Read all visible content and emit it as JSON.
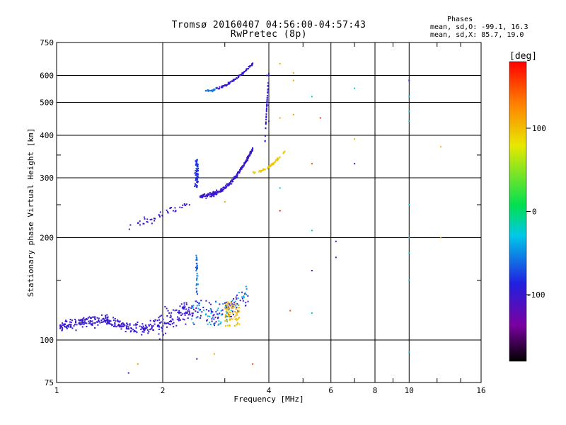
{
  "chart_data": {
    "type": "scatter",
    "title": "Tromsø 20160407 04:56:00-04:57:43",
    "subtitle": "RwPretec (8p)",
    "xlabel": "Frequency [MHz]",
    "ylabel": "Stationary phase Virtual Height [km]",
    "x_scale": "log",
    "y_scale": "log",
    "xlim": [
      1,
      16
    ],
    "ylim": [
      75,
      750
    ],
    "x_ticks": [
      1,
      2,
      4,
      6,
      8,
      10,
      16
    ],
    "y_ticks": [
      75,
      100,
      200,
      300,
      400,
      500,
      600,
      750
    ],
    "grid": true,
    "stats": {
      "heading": "Phases",
      "o_mode": "mean, sd,O: -99.1, 16.3",
      "x_mode": "mean, sd,X:  85.7, 19.0"
    },
    "colorbar": {
      "label": "[deg]",
      "range": [
        -180,
        180
      ],
      "ticks": [
        -100,
        0,
        100
      ],
      "colormap": [
        "#000000",
        "#7a00a0",
        "#2020e0",
        "#00c8e8",
        "#00e050",
        "#e8e800",
        "#ff8000",
        "#ff0000"
      ]
    },
    "clusters": [
      {
        "name": "E-region trace",
        "x_range": [
          1.0,
          3.6
        ],
        "y_range": [
          103,
          145
        ],
        "phase": -95
      },
      {
        "name": "E-region trace (x mode)",
        "x_range": [
          3.0,
          3.3
        ],
        "y_range": [
          110,
          130
        ],
        "phase": 100
      },
      {
        "name": "F2 o-mode trace",
        "x_range": [
          1.6,
          3.8
        ],
        "y_range": [
          215,
          400
        ],
        "phase": -99
      },
      {
        "name": "F2 x-mode trace",
        "x_range": [
          3.6,
          4.5
        ],
        "y_range": [
          310,
          360
        ],
        "phase": 90
      },
      {
        "name": "second-hop trace",
        "x_range": [
          2.6,
          3.6
        ],
        "y_range": [
          545,
          650
        ],
        "phase": -90
      }
    ],
    "sparse_points": [
      {
        "x": 3.95,
        "y": 600,
        "phase": -100
      },
      {
        "x": 3.97,
        "y": 540,
        "phase": -100
      },
      {
        "x": 3.99,
        "y": 490,
        "phase": -100
      },
      {
        "x": 4.0,
        "y": 440,
        "phase": -100
      },
      {
        "x": 4.3,
        "y": 650,
        "phase": 110
      },
      {
        "x": 4.7,
        "y": 610,
        "phase": 110
      },
      {
        "x": 4.7,
        "y": 580,
        "phase": 110
      },
      {
        "x": 4.7,
        "y": 460,
        "phase": 110
      },
      {
        "x": 4.3,
        "y": 450,
        "phase": 110
      },
      {
        "x": 5.3,
        "y": 520,
        "phase": -20
      },
      {
        "x": 5.6,
        "y": 450,
        "phase": 160
      },
      {
        "x": 7.0,
        "y": 550,
        "phase": -30
      },
      {
        "x": 7.0,
        "y": 390,
        "phase": 110
      },
      {
        "x": 7.0,
        "y": 330,
        "phase": -100
      },
      {
        "x": 5.3,
        "y": 330,
        "phase": 150
      },
      {
        "x": 4.3,
        "y": 280,
        "phase": -30
      },
      {
        "x": 4.3,
        "y": 240,
        "phase": 170
      },
      {
        "x": 5.3,
        "y": 210,
        "phase": -10
      },
      {
        "x": 6.2,
        "y": 195,
        "phase": -100
      },
      {
        "x": 6.2,
        "y": 175,
        "phase": -110
      },
      {
        "x": 5.3,
        "y": 160,
        "phase": -100
      },
      {
        "x": 5.3,
        "y": 120,
        "phase": -20
      },
      {
        "x": 4.6,
        "y": 122,
        "phase": 150
      },
      {
        "x": 10.0,
        "y": 580,
        "phase": -100
      },
      {
        "x": 10.0,
        "y": 520,
        "phase": -30
      },
      {
        "x": 10.0,
        "y": 470,
        "phase": -30
      },
      {
        "x": 10.0,
        "y": 440,
        "phase": -30
      },
      {
        "x": 10.0,
        "y": 250,
        "phase": -30
      },
      {
        "x": 10.0,
        "y": 200,
        "phase": -30
      },
      {
        "x": 10.0,
        "y": 180,
        "phase": -30
      },
      {
        "x": 10.0,
        "y": 150,
        "phase": -30
      },
      {
        "x": 10.0,
        "y": 92,
        "phase": -30
      },
      {
        "x": 12.3,
        "y": 370,
        "phase": 110
      },
      {
        "x": 12.3,
        "y": 200,
        "phase": 110
      },
      {
        "x": 1.7,
        "y": 85,
        "phase": 110
      },
      {
        "x": 2.5,
        "y": 88,
        "phase": -120
      },
      {
        "x": 2.8,
        "y": 91,
        "phase": 110
      },
      {
        "x": 3.6,
        "y": 85,
        "phase": 150
      },
      {
        "x": 1.6,
        "y": 80,
        "phase": -100
      },
      {
        "x": 3.0,
        "y": 255,
        "phase": 110
      }
    ]
  }
}
